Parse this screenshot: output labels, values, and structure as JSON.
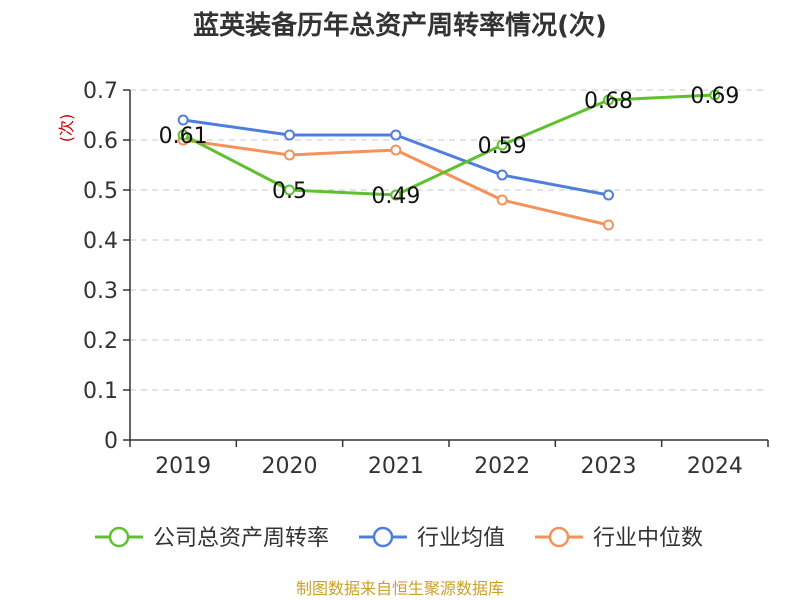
{
  "chart_data": {
    "type": "line",
    "title": "蓝英装备历年总资产周转率情况(次)",
    "ylabel": "(次)",
    "xlabel": "",
    "categories": [
      "2019",
      "2020",
      "2021",
      "2022",
      "2023",
      "2024"
    ],
    "ylim": [
      0,
      0.7
    ],
    "yticks": [
      0,
      0.1,
      0.2,
      0.3,
      0.4,
      0.5,
      0.6,
      0.7
    ],
    "grid": true,
    "legend_position": "bottom",
    "series": [
      {
        "name": "公司总资产周转率",
        "color": "#5ec12d",
        "values": [
          0.61,
          0.5,
          0.49,
          0.59,
          0.68,
          0.69
        ],
        "labels": [
          "0.61",
          "0.5",
          "0.49",
          "0.59",
          "0.68",
          "0.69"
        ]
      },
      {
        "name": "行业均值",
        "color": "#4f7fdb",
        "values": [
          0.64,
          0.61,
          0.61,
          0.53,
          0.49,
          null
        ]
      },
      {
        "name": "行业中位数",
        "color": "#f5915a",
        "values": [
          0.6,
          0.57,
          0.58,
          0.48,
          0.43,
          null
        ]
      }
    ],
    "source": "制图数据来自恒生聚源数据库"
  }
}
